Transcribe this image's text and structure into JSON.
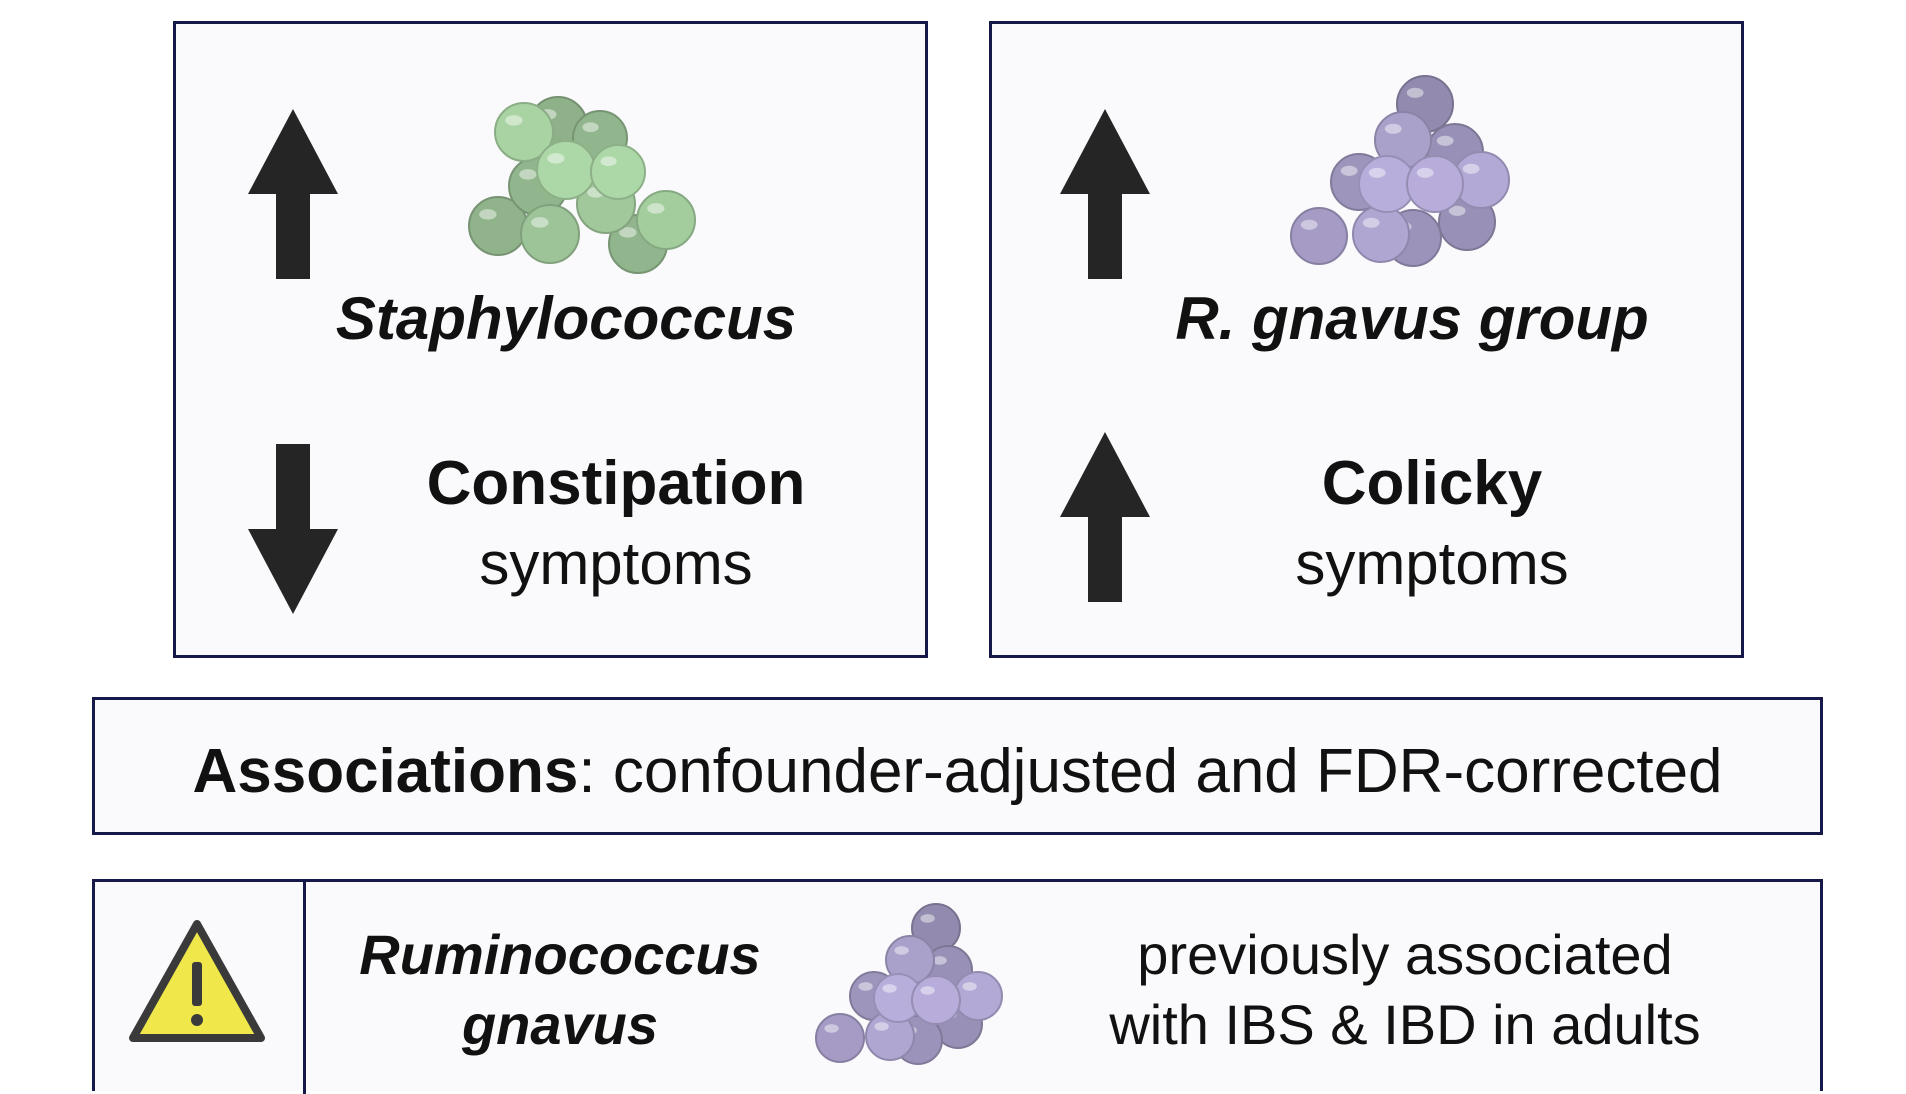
{
  "panels": {
    "staph": {
      "organism": "Staphylococcus",
      "symptom_bold": "Constipation",
      "symptom_rest": "symptoms",
      "organism_direction": "up",
      "symptom_direction": "down",
      "cluster_color": "#a9d3a3"
    },
    "gnavus": {
      "organism": "R. gnavus group",
      "symptom_bold": "Colicky",
      "symptom_rest": "symptoms",
      "organism_direction": "up",
      "symptom_direction": "up",
      "cluster_color": "#b3a9d6"
    }
  },
  "associations": {
    "label": "Associations",
    "text": ": confounder-adjusted and FDR-corrected"
  },
  "warning": {
    "icon": "warning-triangle-icon",
    "organism_line1": "Ruminococcus",
    "organism_line2": "gnavus",
    "note_line1": "previously associated",
    "note_line2": "with IBS & IBD in adults",
    "icon_color": "#f0e74a"
  },
  "colors": {
    "border": "#16184a",
    "arrow": "#252525"
  }
}
